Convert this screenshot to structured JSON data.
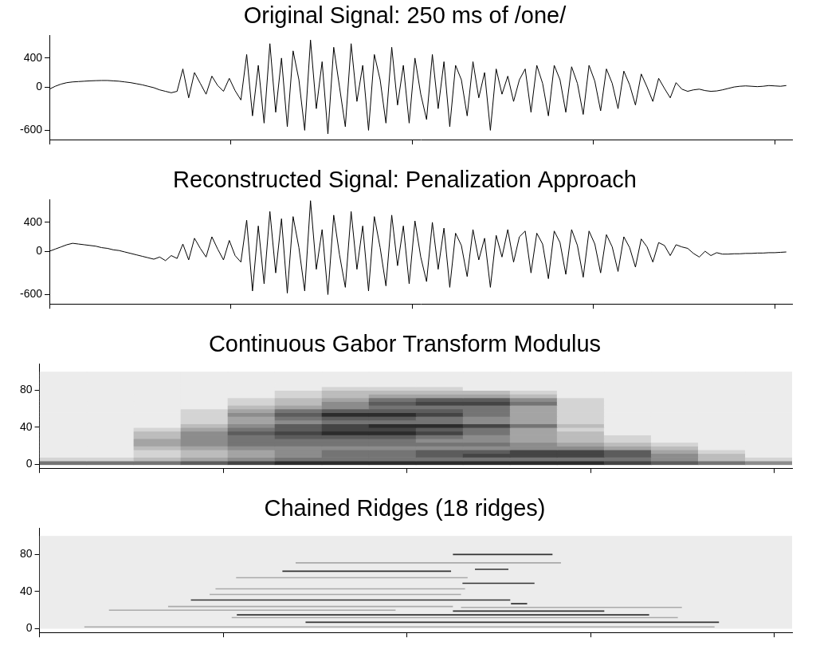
{
  "chart_data": [
    {
      "type": "line",
      "title": "Original Signal: 250 ms of /one/",
      "x": [
        0,
        16,
        32,
        48,
        64,
        80,
        96,
        112,
        128,
        144,
        160,
        176,
        192,
        208,
        224,
        240,
        256,
        272,
        288,
        304,
        320,
        336,
        352,
        368,
        384,
        400,
        416,
        432,
        448,
        464,
        480,
        496,
        512,
        528,
        544,
        560,
        576,
        592,
        608,
        624,
        640,
        656,
        672,
        688,
        704,
        720,
        736,
        752,
        768,
        784,
        800,
        816,
        832,
        848,
        864,
        880,
        896,
        912,
        928,
        944,
        960,
        976,
        992,
        1008,
        1024,
        1040,
        1056,
        1072,
        1088,
        1104,
        1120,
        1136,
        1152,
        1168,
        1184,
        1200,
        1216,
        1232,
        1248,
        1264,
        1280,
        1296,
        1312,
        1328,
        1344,
        1360,
        1376,
        1392,
        1408,
        1424,
        1440,
        1456,
        1472,
        1488,
        1504,
        1520,
        1536,
        1552,
        1568,
        1584,
        1600,
        1616,
        1632,
        1648,
        1664,
        1680,
        1696,
        1712,
        1728,
        1744,
        1760,
        1776,
        1792,
        1808,
        1824,
        1840,
        1856,
        1872,
        1888,
        1904,
        1920,
        1936,
        1952,
        1968,
        1984,
        2000,
        2016,
        2032
      ],
      "values": [
        -30,
        10,
        40,
        60,
        70,
        75,
        80,
        85,
        88,
        90,
        90,
        85,
        80,
        70,
        60,
        45,
        30,
        10,
        -10,
        -40,
        -60,
        -80,
        -60,
        250,
        -150,
        200,
        50,
        -100,
        150,
        20,
        -60,
        120,
        -50,
        -180,
        450,
        -400,
        300,
        -500,
        600,
        -350,
        400,
        -550,
        500,
        100,
        -600,
        650,
        -300,
        350,
        -650,
        550,
        0,
        -550,
        600,
        -200,
        300,
        -600,
        450,
        100,
        -500,
        550,
        -250,
        300,
        -500,
        400,
        -100,
        -450,
        450,
        -300,
        350,
        -550,
        300,
        100,
        -400,
        350,
        -150,
        200,
        -600,
        250,
        -100,
        150,
        -200,
        100,
        250,
        -350,
        300,
        50,
        -400,
        300,
        100,
        -350,
        280,
        50,
        -380,
        300,
        80,
        -330,
        250,
        50,
        -300,
        220,
        30,
        -250,
        180,
        0,
        -200,
        120,
        -20,
        -150,
        60,
        -30,
        -60,
        -40,
        -30,
        -50,
        -60,
        -55,
        -40,
        -20,
        0,
        10,
        15,
        10,
        5,
        10,
        20,
        15,
        10,
        20
      ],
      "color": "#000000",
      "xlim": [
        0,
        2048
      ],
      "xticks": [
        0,
        500,
        1000,
        1500,
        2000
      ],
      "ylim": [
        -730,
        710
      ],
      "yticks": [
        -600,
        0,
        400
      ],
      "grid": false,
      "tick_labels": "y"
    },
    {
      "type": "line",
      "title": "Reconstructed Signal: Penalization Approach",
      "x": [
        0,
        16,
        32,
        48,
        64,
        80,
        96,
        112,
        128,
        144,
        160,
        176,
        192,
        208,
        224,
        240,
        256,
        272,
        288,
        304,
        320,
        336,
        352,
        368,
        384,
        400,
        416,
        432,
        448,
        464,
        480,
        496,
        512,
        528,
        544,
        560,
        576,
        592,
        608,
        624,
        640,
        656,
        672,
        688,
        704,
        720,
        736,
        752,
        768,
        784,
        800,
        816,
        832,
        848,
        864,
        880,
        896,
        912,
        928,
        944,
        960,
        976,
        992,
        1008,
        1024,
        1040,
        1056,
        1072,
        1088,
        1104,
        1120,
        1136,
        1152,
        1168,
        1184,
        1200,
        1216,
        1232,
        1248,
        1264,
        1280,
        1296,
        1312,
        1328,
        1344,
        1360,
        1376,
        1392,
        1408,
        1424,
        1440,
        1456,
        1472,
        1488,
        1504,
        1520,
        1536,
        1552,
        1568,
        1584,
        1600,
        1616,
        1632,
        1648,
        1664,
        1680,
        1696,
        1712,
        1728,
        1744,
        1760,
        1776,
        1792,
        1808,
        1824,
        1840,
        1856,
        1872,
        1888,
        1904,
        1920,
        1936,
        1952,
        1968,
        1984,
        2000,
        2016,
        2032
      ],
      "values": [
        0,
        30,
        60,
        90,
        110,
        100,
        90,
        80,
        70,
        50,
        40,
        20,
        10,
        -10,
        -30,
        -50,
        -70,
        -90,
        -110,
        -80,
        -130,
        -60,
        -100,
        100,
        -120,
        180,
        40,
        -80,
        200,
        30,
        -120,
        150,
        -60,
        -150,
        430,
        -550,
        350,
        -450,
        550,
        -300,
        450,
        -580,
        480,
        50,
        -550,
        700,
        -250,
        300,
        -600,
        500,
        -50,
        -500,
        550,
        -250,
        350,
        -550,
        480,
        50,
        -480,
        500,
        -200,
        350,
        -450,
        420,
        -80,
        -420,
        400,
        -250,
        320,
        -500,
        250,
        80,
        -350,
        300,
        -120,
        180,
        -500,
        220,
        -80,
        300,
        -150,
        200,
        280,
        -300,
        250,
        100,
        -380,
        280,
        120,
        -320,
        300,
        80,
        -360,
        280,
        100,
        -300,
        230,
        60,
        -280,
        200,
        50,
        -220,
        170,
        60,
        -150,
        120,
        80,
        -60,
        90,
        60,
        40,
        -30,
        -80,
        0,
        -60,
        -20,
        -40,
        -40,
        -35,
        -35,
        -30,
        -30,
        -25,
        -25,
        -20,
        -20,
        -15,
        -10
      ],
      "color": "#000000",
      "xlim": [
        0,
        2048
      ],
      "xticks": [
        0,
        500,
        1000,
        1500,
        2000
      ],
      "ylim": [
        -730,
        710
      ],
      "yticks": [
        -600,
        0,
        400
      ],
      "grid": false,
      "tick_labels": "y"
    },
    {
      "type": "heatmap",
      "title": "Continuous Gabor Transform Modulus",
      "x_bins": [
        0,
        128,
        256,
        384,
        512,
        640,
        768,
        896,
        1024,
        1152,
        1280,
        1408,
        1536,
        1664,
        1792,
        1920,
        2048
      ],
      "y_bins": [
        0,
        4,
        8,
        12,
        16,
        20,
        24,
        28,
        32,
        36,
        40,
        44,
        48,
        52,
        56,
        60,
        64,
        68,
        72,
        76,
        80,
        84,
        88,
        92,
        96,
        100
      ],
      "z": [
        [
          5,
          5,
          5,
          6,
          7,
          8,
          8,
          8,
          8,
          8,
          8,
          8,
          7,
          6,
          5,
          4
        ],
        [
          1,
          1,
          2,
          3,
          4,
          5,
          5,
          5,
          5,
          5,
          5,
          5,
          5,
          4,
          2,
          1
        ],
        [
          0,
          0,
          1,
          2,
          3,
          4,
          5,
          5,
          6,
          7,
          7,
          7,
          6,
          4,
          2,
          0
        ],
        [
          0,
          0,
          1,
          2,
          3,
          4,
          5,
          5,
          6,
          6,
          7,
          7,
          6,
          3,
          1,
          0
        ],
        [
          0,
          0,
          2,
          3,
          4,
          4,
          4,
          4,
          4,
          4,
          4,
          4,
          3,
          2,
          0,
          0
        ],
        [
          0,
          0,
          3,
          4,
          5,
          5,
          5,
          5,
          5,
          5,
          4,
          3,
          2,
          1,
          0,
          0
        ],
        [
          0,
          0,
          3,
          4,
          5,
          5,
          5,
          5,
          4,
          4,
          3,
          2,
          1,
          0,
          0,
          0
        ],
        [
          0,
          0,
          2,
          4,
          5,
          6,
          6,
          6,
          5,
          4,
          3,
          2,
          1,
          0,
          0,
          0
        ],
        [
          0,
          0,
          2,
          4,
          6,
          7,
          8,
          8,
          7,
          5,
          3,
          2,
          0,
          0,
          0,
          0
        ],
        [
          0,
          0,
          1,
          3,
          5,
          6,
          7,
          7,
          6,
          5,
          3,
          1,
          0,
          0,
          0,
          0
        ],
        [
          0,
          0,
          0,
          2,
          4,
          6,
          7,
          8,
          8,
          7,
          5,
          2,
          0,
          0,
          0,
          0
        ],
        [
          0,
          0,
          0,
          1,
          3,
          4,
          5,
          5,
          5,
          4,
          3,
          1,
          0,
          0,
          0,
          0
        ],
        [
          0,
          0,
          0,
          1,
          3,
          5,
          6,
          6,
          5,
          4,
          3,
          1,
          0,
          0,
          0,
          0
        ],
        [
          0,
          0,
          0,
          1,
          4,
          6,
          8,
          8,
          7,
          5,
          3,
          1,
          0,
          0,
          0,
          0
        ],
        [
          0,
          0,
          0,
          1,
          3,
          5,
          6,
          6,
          6,
          5,
          3,
          1,
          0,
          0,
          0,
          0
        ],
        [
          0,
          0,
          0,
          0,
          2,
          3,
          4,
          5,
          5,
          5,
          3,
          1,
          0,
          0,
          0,
          0
        ],
        [
          0,
          0,
          0,
          0,
          1,
          2,
          4,
          6,
          7,
          7,
          5,
          1,
          0,
          0,
          0,
          0
        ],
        [
          0,
          0,
          0,
          0,
          1,
          2,
          3,
          5,
          6,
          6,
          4,
          1,
          0,
          0,
          0,
          0
        ],
        [
          0,
          0,
          0,
          0,
          0,
          1,
          2,
          3,
          3,
          3,
          2,
          0,
          0,
          0,
          0,
          0
        ],
        [
          0,
          0,
          0,
          0,
          0,
          1,
          2,
          2,
          2,
          2,
          1,
          0,
          0,
          0,
          0,
          0
        ],
        [
          0,
          0,
          0,
          0,
          0,
          0,
          1,
          1,
          1,
          0,
          0,
          0,
          0,
          0,
          0,
          0
        ],
        [
          0,
          0,
          0,
          0,
          0,
          0,
          0,
          0,
          0,
          0,
          0,
          0,
          0,
          0,
          0,
          0
        ],
        [
          0,
          0,
          0,
          0,
          0,
          0,
          0,
          0,
          0,
          0,
          0,
          0,
          0,
          0,
          0,
          0
        ],
        [
          0,
          0,
          0,
          0,
          0,
          0,
          0,
          0,
          0,
          0,
          0,
          0,
          0,
          0,
          0,
          0
        ],
        [
          0,
          0,
          0,
          0,
          0,
          0,
          0,
          0,
          0,
          0,
          0,
          0,
          0,
          0,
          0,
          0
        ]
      ],
      "zlim": [
        0,
        9
      ],
      "xlim": [
        0,
        2048
      ],
      "xticks": [
        0,
        500,
        1000,
        1500,
        2000
      ],
      "ylim": [
        -4,
        108
      ],
      "yticks": [
        0,
        40,
        80
      ],
      "grid": false,
      "tick_labels": "y"
    },
    {
      "type": "segments",
      "title": "Chained Ridges (18 ridges)",
      "ground": {
        "x": [
          0,
          2048
        ],
        "y": [
          0,
          100
        ]
      },
      "segments": [
        {
          "x": [
            1125,
            1396
          ],
          "y": 80,
          "color": "#333333"
        },
        {
          "x": [
            697,
            1419
          ],
          "y": 71,
          "color": "#aaaaaa"
        },
        {
          "x": [
            661,
            1120
          ],
          "y": 62,
          "color": "#333333"
        },
        {
          "x": [
            1185,
            1276
          ],
          "y": 64,
          "color": "#333333"
        },
        {
          "x": [
            535,
            1165
          ],
          "y": 55,
          "color": "#aaaaaa"
        },
        {
          "x": [
            1151,
            1347
          ],
          "y": 49,
          "color": "#333333"
        },
        {
          "x": [
            479,
            1158
          ],
          "y": 43,
          "color": "#aaaaaa"
        },
        {
          "x": [
            463,
            1147
          ],
          "y": 37,
          "color": "#aaaaaa"
        },
        {
          "x": [
            412,
            1281
          ],
          "y": 31,
          "color": "#333333"
        },
        {
          "x": [
            1283,
            1327
          ],
          "y": 27,
          "color": "#333333"
        },
        {
          "x": [
            350,
            1125
          ],
          "y": 24,
          "color": "#aaaaaa"
        },
        {
          "x": [
            1147,
            1748
          ],
          "y": 23,
          "color": "#aaaaaa"
        },
        {
          "x": [
            189,
            969
          ],
          "y": 20,
          "color": "#aaaaaa"
        },
        {
          "x": [
            1125,
            1537
          ],
          "y": 19,
          "color": "#333333"
        },
        {
          "x": [
            537,
            1659
          ],
          "y": 15,
          "color": "#333333"
        },
        {
          "x": [
            523,
            1737
          ],
          "y": 12,
          "color": "#aaaaaa"
        },
        {
          "x": [
            724,
            1849
          ],
          "y": 7,
          "color": "#333333"
        },
        {
          "x": [
            122,
            1837
          ],
          "y": 2,
          "color": "#aaaaaa"
        }
      ],
      "xlim": [
        0,
        2048
      ],
      "xticks": [
        0,
        500,
        1000,
        1500,
        2000
      ],
      "ylim": [
        -4,
        108
      ],
      "yticks": [
        0,
        40,
        80
      ],
      "grid": false,
      "tick_labels": "y"
    }
  ]
}
